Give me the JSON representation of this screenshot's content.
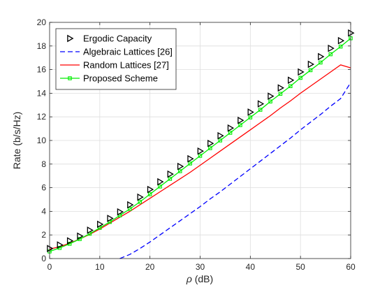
{
  "chart_data": {
    "type": "line",
    "xlabel_symbol": "ρ",
    "xlabel_unit": " (dB)",
    "ylabel": "Rate  (b/s/Hz)",
    "xlim": [
      0,
      60
    ],
    "ylim": [
      0,
      20
    ],
    "xticks": [
      0,
      10,
      20,
      30,
      40,
      50,
      60
    ],
    "yticks": [
      0,
      2,
      4,
      6,
      8,
      10,
      12,
      14,
      16,
      18,
      20
    ],
    "grid": true,
    "legend_position": "top-left",
    "series": [
      {
        "name": "Ergodic Capacity",
        "style": "markers-only",
        "marker": "right-triangle",
        "color": "#000000",
        "x": [
          0,
          2,
          4,
          6,
          8,
          10,
          12,
          14,
          16,
          18,
          20,
          22,
          24,
          26,
          28,
          30,
          32,
          34,
          36,
          38,
          40,
          42,
          44,
          46,
          48,
          50,
          52,
          54,
          56,
          58,
          60
        ],
        "y": [
          0.85,
          1.15,
          1.5,
          1.9,
          2.4,
          2.9,
          3.4,
          3.95,
          4.55,
          5.2,
          5.85,
          6.5,
          7.15,
          7.8,
          8.45,
          9.1,
          9.75,
          10.4,
          11.05,
          11.7,
          12.4,
          13.1,
          13.75,
          14.45,
          15.1,
          15.8,
          16.45,
          17.1,
          17.8,
          18.45,
          19.1
        ]
      },
      {
        "name": "Algebraic Lattices [26]",
        "style": "dashed",
        "color": "#0000ff",
        "x": [
          14,
          16,
          18,
          20,
          22,
          24,
          26,
          28,
          30,
          32,
          34,
          36,
          38,
          40,
          42,
          44,
          46,
          48,
          50,
          52,
          54,
          56,
          58,
          60
        ],
        "y": [
          0,
          0.35,
          0.85,
          1.4,
          2.0,
          2.6,
          3.2,
          3.8,
          4.4,
          5.05,
          5.65,
          6.3,
          6.95,
          7.6,
          8.25,
          8.9,
          9.55,
          10.2,
          10.9,
          11.55,
          12.2,
          12.9,
          13.55,
          14.9
        ]
      },
      {
        "name": "Random Lattices [27]",
        "style": "solid",
        "color": "#ff0000",
        "x": [
          0,
          2,
          4,
          6,
          8,
          10,
          12,
          14,
          16,
          18,
          20,
          22,
          24,
          26,
          28,
          30,
          32,
          34,
          36,
          38,
          40,
          42,
          44,
          46,
          48,
          50,
          52,
          54,
          56,
          58,
          60
        ],
        "y": [
          0.8,
          1.0,
          1.3,
          1.65,
          2.05,
          2.5,
          3.0,
          3.5,
          4.0,
          4.55,
          5.1,
          5.65,
          6.2,
          6.75,
          7.3,
          7.9,
          8.5,
          9.1,
          9.7,
          10.3,
          10.9,
          11.5,
          12.1,
          12.75,
          13.35,
          14.0,
          14.6,
          15.2,
          15.8,
          16.4,
          16.15
        ]
      },
      {
        "name": "Proposed Scheme",
        "style": "solid-square-markers",
        "marker": "square",
        "color": "#00ee00",
        "x": [
          0,
          2,
          4,
          6,
          8,
          10,
          12,
          14,
          16,
          18,
          20,
          22,
          24,
          26,
          28,
          30,
          32,
          34,
          36,
          38,
          40,
          42,
          44,
          46,
          48,
          50,
          52,
          54,
          56,
          58,
          60
        ],
        "y": [
          0.6,
          0.9,
          1.25,
          1.65,
          2.1,
          2.6,
          3.1,
          3.65,
          4.2,
          4.8,
          5.45,
          6.1,
          6.75,
          7.4,
          8.05,
          8.7,
          9.35,
          10.0,
          10.65,
          11.3,
          11.95,
          12.6,
          13.3,
          13.95,
          14.6,
          15.3,
          15.95,
          16.6,
          17.3,
          17.95,
          18.65
        ]
      }
    ]
  }
}
